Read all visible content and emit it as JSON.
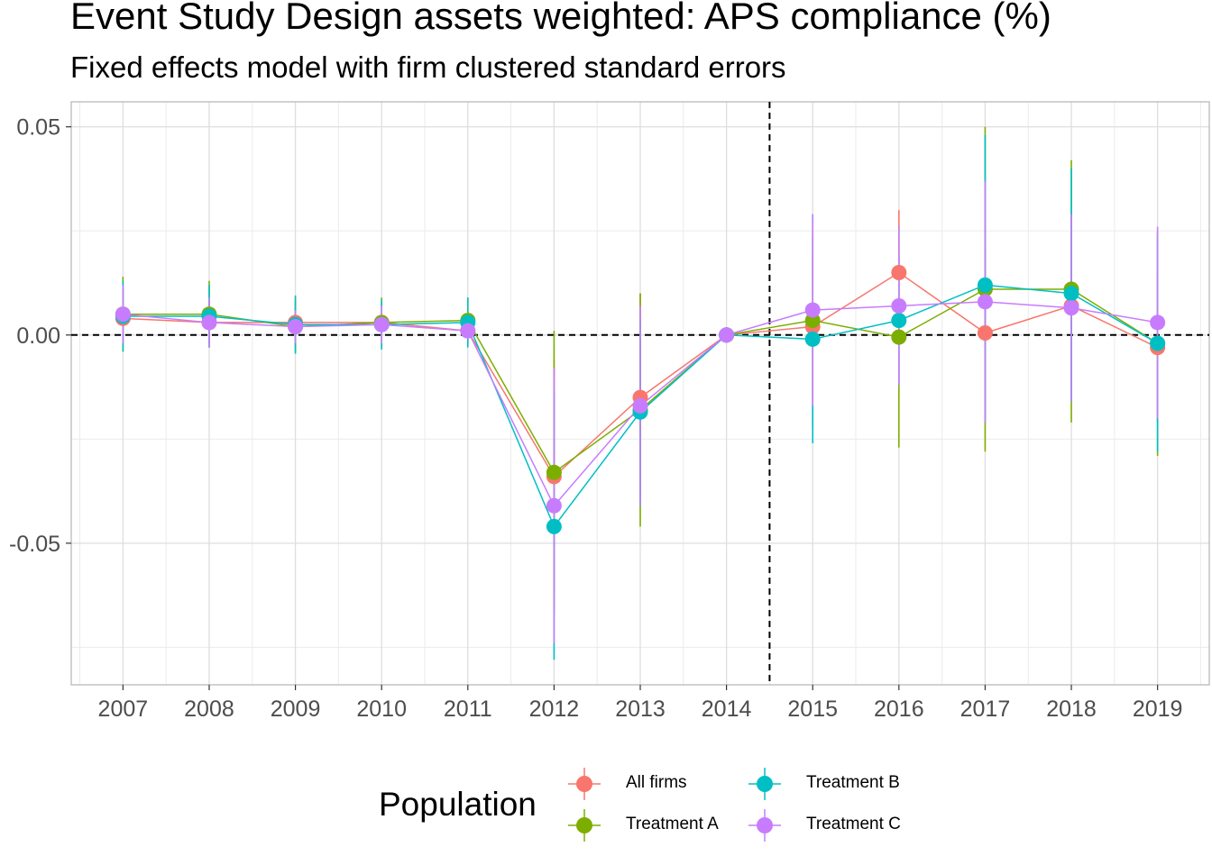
{
  "title": "Event Study Design assets weighted: APS compliance (%)",
  "subtitle": "Fixed effects model with firm clustered standard errors",
  "chart_data": {
    "type": "line",
    "title": "Event Study Design assets weighted: APS compliance (%)",
    "subtitle": "Fixed effects model with firm clustered standard errors",
    "xlabel": "",
    "ylabel": "",
    "x": [
      2007,
      2008,
      2009,
      2010,
      2011,
      2012,
      2013,
      2014,
      2015,
      2016,
      2017,
      2018,
      2019
    ],
    "x_tick_labels": [
      "2007",
      "2008",
      "2009",
      "2010",
      "2011",
      "2012",
      "2013",
      "2014",
      "2015",
      "2016",
      "2017",
      "2018",
      "2019"
    ],
    "ylim": [
      -0.084,
      0.056
    ],
    "y_ticks": [
      -0.05,
      0.0,
      0.05
    ],
    "y_tick_labels": [
      "-0.05",
      "0.00",
      "0.05"
    ],
    "reference_lines": {
      "horizontal_y": 0.0,
      "vertical_x": 2014.5,
      "style": "dashed"
    },
    "grid": true,
    "legend_position": "bottom",
    "legend_title": "Population",
    "series": [
      {
        "name": "All firms",
        "color": "#F8766D",
        "values": [
          0.004,
          0.003,
          0.003,
          0.003,
          0.001,
          -0.034,
          -0.015,
          0.0,
          0.002,
          0.015,
          0.0005,
          0.007,
          -0.003
        ],
        "lower": [
          -0.003,
          -0.002,
          -0.003,
          -0.002,
          -0.001,
          -0.062,
          -0.04,
          0.0,
          -0.015,
          0.001,
          -0.02,
          -0.015,
          -0.021
        ],
        "upper": [
          0.011,
          0.008,
          0.009,
          0.008,
          0.003,
          -0.006,
          0.01,
          0.0,
          0.019,
          0.03,
          0.021,
          0.029,
          0.015
        ]
      },
      {
        "name": "Treatment A",
        "color": "#7CAE00",
        "values": [
          0.005,
          0.005,
          0.002,
          0.003,
          0.0035,
          -0.033,
          -0.018,
          0.0,
          0.0035,
          -0.0005,
          0.011,
          0.011,
          -0.002
        ],
        "lower": [
          -0.004,
          -0.003,
          -0.004,
          -0.003,
          -0.002,
          -0.067,
          -0.046,
          0.0,
          -0.022,
          -0.027,
          -0.028,
          -0.021,
          -0.029
        ],
        "upper": [
          0.014,
          0.013,
          0.008,
          0.009,
          0.009,
          0.001,
          0.01,
          0.0,
          0.029,
          0.026,
          0.05,
          0.042,
          0.025
        ]
      },
      {
        "name": "Treatment B",
        "color": "#00BFC4",
        "values": [
          0.0045,
          0.0045,
          0.0025,
          0.0025,
          0.003,
          -0.046,
          -0.0185,
          0.0,
          -0.001,
          0.0035,
          0.012,
          0.01,
          -0.002
        ],
        "lower": [
          -0.004,
          -0.003,
          -0.0045,
          -0.0035,
          -0.003,
          -0.078,
          -0.041,
          0.0,
          -0.026,
          -0.012,
          -0.021,
          -0.016,
          -0.028
        ],
        "upper": [
          0.013,
          0.012,
          0.0095,
          0.0085,
          0.009,
          -0.014,
          0.004,
          0.0,
          0.024,
          0.019,
          0.048,
          0.04,
          0.024
        ]
      },
      {
        "name": "Treatment C",
        "color": "#C77CFF",
        "values": [
          0.005,
          0.003,
          0.002,
          0.0025,
          0.001,
          -0.041,
          -0.017,
          0.0,
          0.006,
          0.007,
          0.008,
          0.0065,
          0.003
        ],
        "lower": [
          -0.002,
          -0.003,
          -0.002,
          -0.002,
          -0.001,
          -0.074,
          -0.041,
          0.0,
          -0.017,
          -0.012,
          -0.021,
          -0.016,
          -0.02
        ],
        "upper": [
          0.012,
          0.009,
          0.006,
          0.007,
          0.003,
          -0.008,
          0.007,
          0.0,
          0.029,
          0.026,
          0.037,
          0.029,
          0.026
        ]
      }
    ]
  },
  "legend": {
    "title": "Population",
    "items": [
      {
        "label": "All firms",
        "color": "#F8766D"
      },
      {
        "label": "Treatment B",
        "color": "#00BFC4"
      },
      {
        "label": "Treatment A",
        "color": "#7CAE00"
      },
      {
        "label": "Treatment C",
        "color": "#C77CFF"
      }
    ]
  }
}
